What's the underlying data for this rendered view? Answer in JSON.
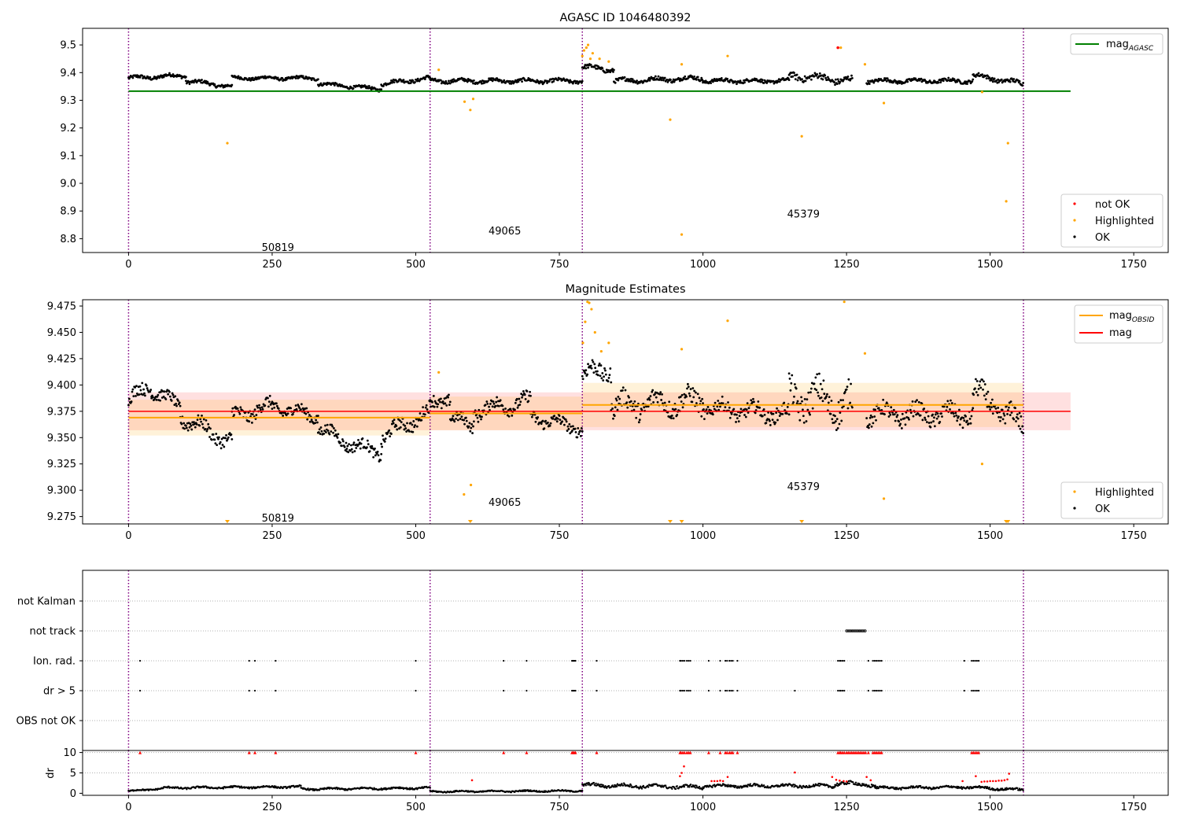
{
  "colors": {
    "ok": "#000000",
    "highlighted": "#ffa500",
    "not_ok": "#ff0000",
    "agasc": "#008000",
    "obsid": "#ffa500",
    "mag": "#ff0000",
    "vline": "#800080"
  },
  "chart_data": [
    {
      "id": "agasc",
      "type": "scatter",
      "title": "AGASC ID 1046480392",
      "xlim": [
        -80,
        1810
      ],
      "ylim": [
        8.75,
        9.56
      ],
      "xticks": [
        0,
        250,
        500,
        750,
        1000,
        1250,
        1500,
        1750
      ],
      "yticks": [
        8.8,
        8.9,
        9.0,
        9.1,
        9.2,
        9.3,
        9.4,
        9.5
      ],
      "ytick_labels": [
        "8.8",
        "8.9",
        "9.0",
        "9.1",
        "9.2",
        "9.3",
        "9.4",
        "9.5"
      ],
      "obsid_boundaries": [
        0,
        525,
        790,
        1558
      ],
      "obsid_labels": [
        {
          "text": "50819",
          "x": 260,
          "y": 8.77
        },
        {
          "text": "49065",
          "x": 655,
          "y": 8.83
        },
        {
          "text": "45379",
          "x": 1175,
          "y": 8.89
        }
      ],
      "mag_agasc": {
        "value": 9.333,
        "x": [
          0,
          1640
        ]
      },
      "legend_lines": [
        {
          "label": "mag",
          "sub": "AGASC",
          "color": "#008000"
        }
      ],
      "legend_points": [
        {
          "label": "not OK",
          "color": "#ff0000"
        },
        {
          "label": "Highlighted",
          "color": "#ffa500"
        },
        {
          "label": "OK",
          "color": "#000000"
        }
      ],
      "ok_segments": [
        {
          "x0": 0,
          "x1": 100,
          "y0": 9.38,
          "y1": 9.39,
          "amp": 0.012
        },
        {
          "x0": 100,
          "x1": 180,
          "y0": 9.37,
          "y1": 9.35,
          "amp": 0.012
        },
        {
          "x0": 180,
          "x1": 330,
          "y0": 9.38,
          "y1": 9.38,
          "amp": 0.01
        },
        {
          "x0": 330,
          "x1": 440,
          "y0": 9.36,
          "y1": 9.34,
          "amp": 0.01
        },
        {
          "x0": 440,
          "x1": 525,
          "y0": 9.36,
          "y1": 9.38,
          "amp": 0.012
        },
        {
          "x0": 525,
          "x1": 790,
          "y0": 9.37,
          "y1": 9.37,
          "amp": 0.012
        },
        {
          "x0": 790,
          "x1": 845,
          "y0": 9.42,
          "y1": 9.41,
          "amp": 0.015
        },
        {
          "x0": 845,
          "x1": 1000,
          "y0": 9.37,
          "y1": 9.38,
          "amp": 0.014
        },
        {
          "x0": 1000,
          "x1": 1150,
          "y0": 9.37,
          "y1": 9.37,
          "amp": 0.012
        },
        {
          "x0": 1150,
          "x1": 1260,
          "y0": 9.39,
          "y1": 9.37,
          "amp": 0.022
        },
        {
          "x0": 1285,
          "x1": 1470,
          "y0": 9.37,
          "y1": 9.37,
          "amp": 0.012
        },
        {
          "x0": 1470,
          "x1": 1558,
          "y0": 9.39,
          "y1": 9.36,
          "amp": 0.014
        }
      ],
      "highlighted": [
        [
          172,
          9.145
        ],
        [
          540,
          9.41
        ],
        [
          585,
          9.295
        ],
        [
          595,
          9.265
        ],
        [
          600,
          9.305
        ],
        [
          790,
          9.46
        ],
        [
          793,
          9.48
        ],
        [
          797,
          9.49
        ],
        [
          800,
          9.5
        ],
        [
          804,
          9.45
        ],
        [
          808,
          9.47
        ],
        [
          820,
          9.45
        ],
        [
          836,
          9.44
        ],
        [
          963,
          9.43
        ],
        [
          943,
          9.23
        ],
        [
          963,
          8.815
        ],
        [
          1043,
          9.46
        ],
        [
          1172,
          9.17
        ],
        [
          1240,
          9.49
        ],
        [
          1282,
          9.43
        ],
        [
          1315,
          9.29
        ],
        [
          1486,
          9.33
        ],
        [
          1528,
          8.935
        ],
        [
          1531,
          9.145
        ]
      ],
      "not_ok": [
        [
          1235,
          9.49
        ]
      ]
    },
    {
      "id": "mag",
      "type": "scatter",
      "title": "Magnitude Estimates",
      "xlim": [
        -80,
        1810
      ],
      "ylim": [
        9.268,
        9.481
      ],
      "xticks": [
        0,
        250,
        500,
        750,
        1000,
        1250,
        1500,
        1750
      ],
      "yticks": [
        9.275,
        9.3,
        9.325,
        9.35,
        9.375,
        9.4,
        9.425,
        9.45,
        9.475
      ],
      "ytick_labels": [
        "9.275",
        "9.300",
        "9.325",
        "9.350",
        "9.375",
        "9.400",
        "9.425",
        "9.450",
        "9.475"
      ],
      "obsid_boundaries": [
        0,
        525,
        790,
        1558
      ],
      "obsid_labels": [
        {
          "text": "50819",
          "x": 260,
          "y": 9.274
        },
        {
          "text": "49065",
          "x": 655,
          "y": 9.289
        },
        {
          "text": "45379",
          "x": 1175,
          "y": 9.304
        }
      ],
      "mag_line": {
        "value": 9.375,
        "x": [
          0,
          1640
        ],
        "band": [
          9.357,
          9.393
        ]
      },
      "obsid_mags": [
        {
          "x": [
            0,
            525
          ],
          "value": 9.369,
          "band": [
            9.352,
            9.386
          ]
        },
        {
          "x": [
            525,
            790
          ],
          "value": 9.373,
          "band": [
            9.357,
            9.389
          ]
        },
        {
          "x": [
            790,
            1558
          ],
          "value": 9.381,
          "band": [
            9.36,
            9.402
          ]
        }
      ],
      "legend_lines": [
        {
          "label": "mag",
          "sub": "OBSID",
          "color": "#ffa500"
        },
        {
          "label": "mag",
          "sub": "",
          "color": "#ff0000"
        }
      ],
      "legend_points": [
        {
          "label": "Highlighted",
          "color": "#ffa500"
        },
        {
          "label": "OK",
          "color": "#000000"
        }
      ],
      "ok_segments": [
        {
          "x0": 0,
          "x1": 40,
          "y0": 9.385,
          "y1": 9.4,
          "amp": 0.012
        },
        {
          "x0": 40,
          "x1": 90,
          "y0": 9.395,
          "y1": 9.38,
          "amp": 0.01
        },
        {
          "x0": 90,
          "x1": 180,
          "y0": 9.37,
          "y1": 9.345,
          "amp": 0.012
        },
        {
          "x0": 180,
          "x1": 250,
          "y0": 9.37,
          "y1": 9.38,
          "amp": 0.012
        },
        {
          "x0": 250,
          "x1": 330,
          "y0": 9.38,
          "y1": 9.37,
          "amp": 0.01
        },
        {
          "x0": 330,
          "x1": 380,
          "y0": 9.36,
          "y1": 9.345,
          "amp": 0.01
        },
        {
          "x0": 380,
          "x1": 440,
          "y0": 9.345,
          "y1": 9.335,
          "amp": 0.01
        },
        {
          "x0": 440,
          "x1": 525,
          "y0": 9.35,
          "y1": 9.375,
          "amp": 0.012
        },
        {
          "x0": 525,
          "x1": 560,
          "y0": 9.38,
          "y1": 9.39,
          "amp": 0.012
        },
        {
          "x0": 560,
          "x1": 600,
          "y0": 9.37,
          "y1": 9.36,
          "amp": 0.01
        },
        {
          "x0": 600,
          "x1": 700,
          "y0": 9.375,
          "y1": 9.385,
          "amp": 0.012
        },
        {
          "x0": 700,
          "x1": 790,
          "y0": 9.37,
          "y1": 9.358,
          "amp": 0.01
        },
        {
          "x0": 790,
          "x1": 840,
          "y0": 9.41,
          "y1": 9.415,
          "amp": 0.015
        },
        {
          "x0": 840,
          "x1": 1000,
          "y0": 9.38,
          "y1": 9.385,
          "amp": 0.018
        },
        {
          "x0": 1000,
          "x1": 1150,
          "y0": 9.378,
          "y1": 9.372,
          "amp": 0.013
        },
        {
          "x0": 1150,
          "x1": 1260,
          "y0": 9.39,
          "y1": 9.38,
          "amp": 0.028
        },
        {
          "x0": 1285,
          "x1": 1470,
          "y0": 9.372,
          "y1": 9.372,
          "amp": 0.015
        },
        {
          "x0": 1470,
          "x1": 1558,
          "y0": 9.395,
          "y1": 9.36,
          "amp": 0.018
        }
      ],
      "highlighted": [
        [
          540,
          9.412
        ],
        [
          584,
          9.296
        ],
        [
          596,
          9.305
        ],
        [
          791,
          9.44
        ],
        [
          795,
          9.46
        ],
        [
          799,
          9.479
        ],
        [
          802,
          9.478
        ],
        [
          806,
          9.472
        ],
        [
          812,
          9.45
        ],
        [
          823,
          9.432
        ],
        [
          836,
          9.44
        ],
        [
          963,
          9.434
        ],
        [
          1043,
          9.461
        ],
        [
          1246,
          9.479
        ],
        [
          1282,
          9.43
        ],
        [
          1315,
          9.292
        ],
        [
          1486,
          9.325
        ]
      ],
      "clipped_low": [
        172,
        595,
        943,
        963,
        1172,
        1528,
        1531
      ]
    },
    {
      "id": "flags",
      "type": "scatter",
      "xlim": [
        -80,
        1810
      ],
      "categories": [
        "not Kalman",
        "not track",
        "Ion. rad.",
        "dr > 5",
        "OBS not OK"
      ],
      "obsid_boundaries": [
        0,
        525,
        790,
        1558
      ],
      "ion_rad": [
        20,
        210,
        220,
        256,
        500,
        653,
        693,
        772,
        774,
        776,
        778,
        815,
        960,
        962,
        965,
        968,
        972,
        975,
        978,
        1010,
        1030,
        1039,
        1042,
        1046,
        1049,
        1052,
        1060,
        1235,
        1238,
        1240,
        1243,
        1246,
        1288,
        1296,
        1299,
        1302,
        1305,
        1308,
        1311,
        1455,
        1468,
        1471,
        1474,
        1477,
        1480
      ],
      "dr_gt_5": [
        20,
        210,
        220,
        256,
        500,
        653,
        693,
        772,
        774,
        776,
        778,
        815,
        960,
        962,
        965,
        968,
        972,
        975,
        978,
        1010,
        1030,
        1039,
        1042,
        1046,
        1049,
        1052,
        1060,
        1160,
        1235,
        1238,
        1240,
        1243,
        1246,
        1288,
        1296,
        1299,
        1302,
        1305,
        1308,
        1311,
        1455,
        1468,
        1471,
        1474,
        1477,
        1480
      ],
      "not_track_range": [
        1250,
        1283
      ]
    },
    {
      "id": "dr",
      "type": "scatter",
      "ylabel": "dr",
      "xlim": [
        -80,
        1810
      ],
      "ylim": [
        -0.5,
        10.5
      ],
      "xticks": [
        0,
        250,
        500,
        750,
        1000,
        1250,
        1500,
        1750
      ],
      "yticks": [
        0,
        5,
        10
      ],
      "ytick_labels": [
        "0",
        "5",
        "10"
      ],
      "obsid_boundaries": [
        0,
        525,
        790,
        1558
      ],
      "ok_segments": [
        {
          "x0": 0,
          "x1": 60,
          "y0": 0.5,
          "y1": 1.2,
          "amp": 0.3
        },
        {
          "x0": 60,
          "x1": 300,
          "y0": 1.3,
          "y1": 1.6,
          "amp": 0.4
        },
        {
          "x0": 300,
          "x1": 525,
          "y0": 1.0,
          "y1": 1.3,
          "amp": 0.4
        },
        {
          "x0": 525,
          "x1": 790,
          "y0": 0.4,
          "y1": 0.6,
          "amp": 0.3
        },
        {
          "x0": 790,
          "x1": 1000,
          "y0": 2.0,
          "y1": 1.5,
          "amp": 0.7
        },
        {
          "x0": 1000,
          "x1": 1230,
          "y0": 1.8,
          "y1": 1.8,
          "amp": 0.6
        },
        {
          "x0": 1230,
          "x1": 1300,
          "y0": 2.5,
          "y1": 2.0,
          "amp": 0.8
        },
        {
          "x0": 1300,
          "x1": 1460,
          "y0": 1.3,
          "y1": 1.5,
          "amp": 0.5
        },
        {
          "x0": 1460,
          "x1": 1558,
          "y0": 1.5,
          "y1": 0.8,
          "amp": 0.5
        }
      ],
      "red_points": [
        [
          598,
          3.2
        ],
        [
          960,
          4.2
        ],
        [
          963,
          5.0
        ],
        [
          967,
          6.6
        ],
        [
          1015,
          3.0
        ],
        [
          1020,
          3.0
        ],
        [
          1025,
          3.0
        ],
        [
          1030,
          3.1
        ],
        [
          1035,
          3.0
        ],
        [
          1043,
          4.0
        ],
        [
          1160,
          5.1
        ],
        [
          1225,
          4.0
        ],
        [
          1232,
          3.3
        ],
        [
          1238,
          3.1
        ],
        [
          1245,
          3.0
        ],
        [
          1250,
          2.9
        ],
        [
          1285,
          4.0
        ],
        [
          1292,
          3.2
        ],
        [
          1452,
          3.0
        ],
        [
          1475,
          4.2
        ],
        [
          1485,
          2.8
        ],
        [
          1490,
          2.9
        ],
        [
          1495,
          2.9
        ],
        [
          1500,
          3.0
        ],
        [
          1505,
          3.0
        ],
        [
          1510,
          3.0
        ],
        [
          1515,
          3.1
        ],
        [
          1520,
          3.1
        ],
        [
          1525,
          3.2
        ],
        [
          1530,
          3.4
        ],
        [
          1533,
          4.8
        ]
      ],
      "clipped_ten": [
        20,
        210,
        220,
        256,
        500,
        653,
        693,
        772,
        774,
        776,
        778,
        815,
        960,
        962,
        965,
        968,
        972,
        975,
        978,
        1010,
        1030,
        1039,
        1042,
        1046,
        1049,
        1052,
        1060,
        1235,
        1238,
        1240,
        1243,
        1246,
        1250,
        1253,
        1256,
        1259,
        1262,
        1265,
        1268,
        1271,
        1274,
        1277,
        1280,
        1283,
        1288,
        1296,
        1299,
        1302,
        1305,
        1308,
        1311,
        1468,
        1471,
        1474,
        1477,
        1480
      ]
    }
  ]
}
